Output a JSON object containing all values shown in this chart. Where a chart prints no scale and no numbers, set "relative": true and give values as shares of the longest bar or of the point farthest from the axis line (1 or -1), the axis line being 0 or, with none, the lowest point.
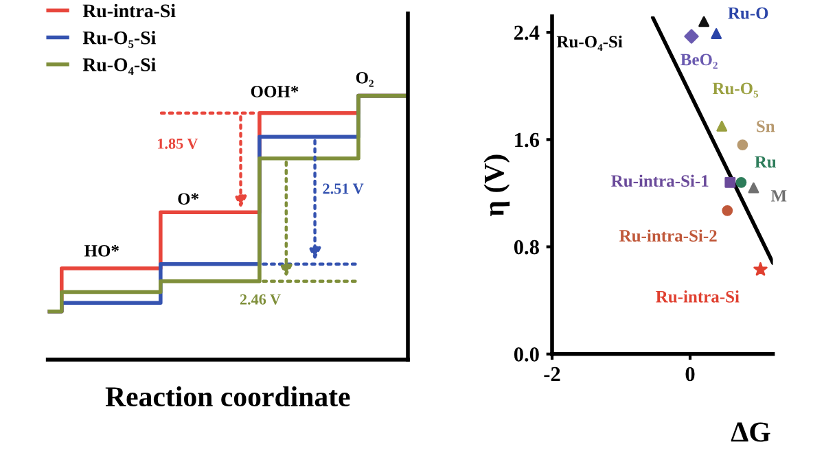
{
  "chart_data": [
    {
      "type": "step",
      "relative": true,
      "categories": [
        null,
        null,
        null,
        null,
        null
      ],
      "xlabel": "Reaction coordinate",
      "legend": "top left",
      "grid": false,
      "series": [
        {
          "name": "Ru-intra-Si",
          "color": "#e8463c",
          "values": [
            0,
            0.2,
            0.46,
            0.92,
            1
          ]
        },
        {
          "name": "Ru-O₅-Si",
          "color": "#3553b0",
          "values": [
            0,
            0.04,
            0.22,
            0.81,
            1
          ]
        },
        {
          "name": "Ru-O₄-Si",
          "color": "#7f8f3a",
          "values": [
            0,
            0.09,
            0.14,
            0.71,
            1
          ]
        }
      ],
      "annotations": [
        "HO*",
        "O*",
        "OOH*",
        "O₂",
        "1.85 V",
        "2.51 V",
        "2.46 V"
      ]
    },
    {
      "type": "scatter",
      "xlabel": "ΔG",
      "ylabel": "η (V)",
      "xlim": [
        -2,
        1.2
      ],
      "ylim": [
        0,
        2.52
      ],
      "xticks": [
        -2,
        0
      ],
      "yticks": [
        {
          "value": 0,
          "label": "0.0"
        },
        {
          "value": 0.8,
          "label": "0.8"
        },
        {
          "value": 1.6,
          "label": "1.6"
        },
        {
          "value": 2.4,
          "label": "2.4"
        }
      ],
      "grid": false,
      "legend": false,
      "annotations": [
        "Ru-O₄-Si"
      ],
      "series": [
        {
          "type": "line",
          "color": "#000000",
          "marker": "none",
          "x": [
            -0.54,
            1.2
          ],
          "values": [
            2.51,
            0.68
          ]
        },
        {
          "color": "#111111",
          "marker": "triangle",
          "x": [
            0.2
          ],
          "values": [
            2.48
          ]
        },
        {
          "name": "Ru-O",
          "color": "#2a44a8",
          "marker": "triangle",
          "x": [
            0.38
          ],
          "values": [
            2.39
          ]
        },
        {
          "name": "BeO₂",
          "color": "#6a5ab0",
          "marker": "diamond",
          "x": [
            0.02
          ],
          "values": [
            2.37
          ]
        },
        {
          "name": "Ru-O₅",
          "color": "#9aa040",
          "marker": "triangle",
          "x": [
            0.46
          ],
          "values": [
            1.7
          ]
        },
        {
          "name": "Sn",
          "color": "#b89a70",
          "marker": "circle",
          "x": [
            0.76
          ],
          "values": [
            1.56
          ]
        },
        {
          "name": "Ru",
          "color": "#2e7d5b",
          "marker": "circle",
          "x": [
            0.74
          ],
          "values": [
            1.28
          ]
        },
        {
          "name": "M",
          "color": "#707070",
          "marker": "triangle",
          "x": [
            0.92
          ],
          "values": [
            1.24
          ]
        },
        {
          "name": "Ru-intra-Si-1",
          "color": "#6a4a9a",
          "marker": "square",
          "x": [
            0.58
          ],
          "values": [
            1.28
          ]
        },
        {
          "name": "Ru-intra-Si-2",
          "color": "#c0583a",
          "marker": "circle",
          "x": [
            0.54
          ],
          "values": [
            1.07
          ]
        },
        {
          "name": "Ru-intra-Si",
          "color": "#e04030",
          "marker": "star",
          "x": [
            1.02
          ],
          "values": [
            0.63
          ]
        }
      ]
    }
  ]
}
